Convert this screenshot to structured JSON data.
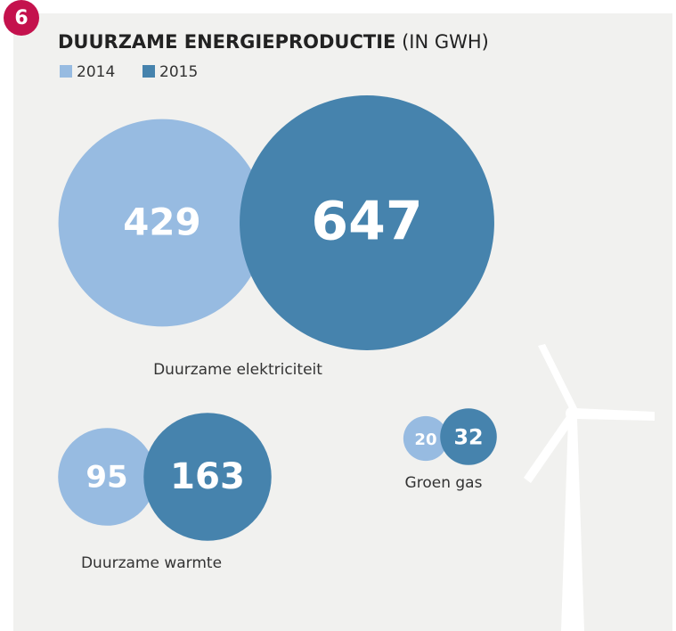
{
  "chart_data": {
    "type": "bubble",
    "badge": "6",
    "title": "DUURZAME ENERGIEPRODUCTIE",
    "subtitle": "(IN GWH)",
    "categories": [
      "Duurzame elektriciteit",
      "Duurzame warmte",
      "Groen gas"
    ],
    "series": [
      {
        "name": "2014",
        "color": "#97bbe1",
        "values": [
          429,
          95,
          20
        ]
      },
      {
        "name": "2015",
        "color": "#4683ad",
        "values": [
          647,
          163,
          32
        ]
      }
    ]
  }
}
